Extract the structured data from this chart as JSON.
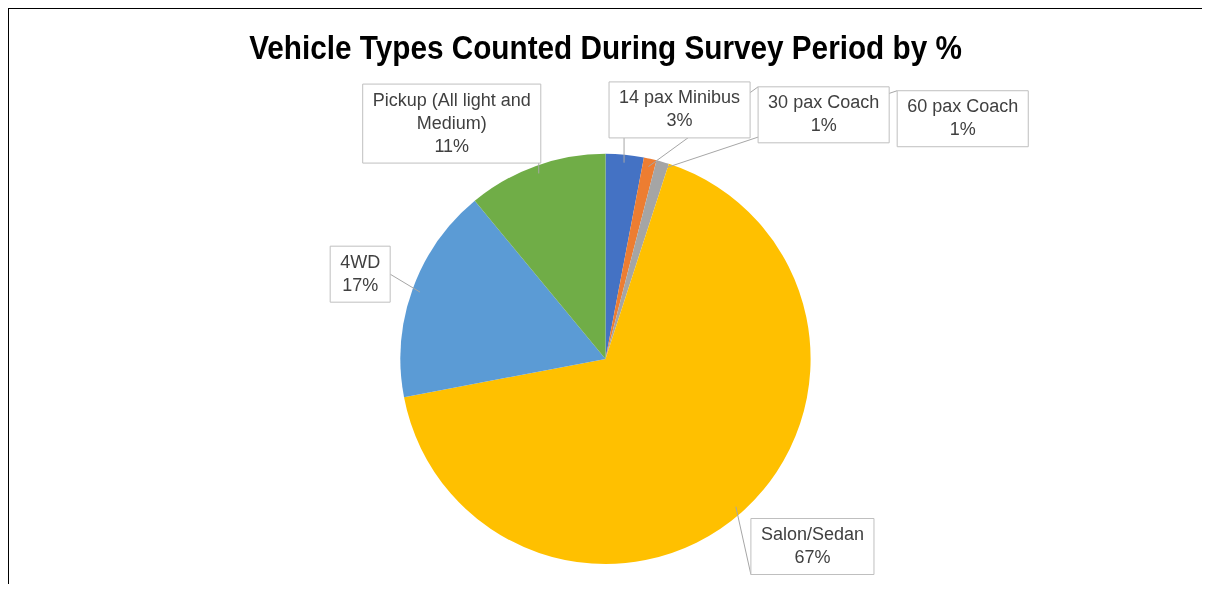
{
  "chart_data": {
    "type": "pie",
    "title": "Vehicle Types Counted During Survey Period by %",
    "categories": [
      "14 pax Minibus",
      "30 pax Coach",
      "60 pax Coach",
      "Salon/Sedan",
      "4WD",
      "Pickup (All light and Medium)"
    ],
    "values": [
      3,
      1,
      1,
      67,
      17,
      11
    ],
    "value_labels": [
      "3%",
      "1%",
      "1%",
      "67%",
      "17%",
      "11%"
    ],
    "colors": [
      "#4472c4",
      "#ed7d31",
      "#a5a5a5",
      "#ffc000",
      "#5b9bd5",
      "#70ad47"
    ],
    "legend": false
  }
}
